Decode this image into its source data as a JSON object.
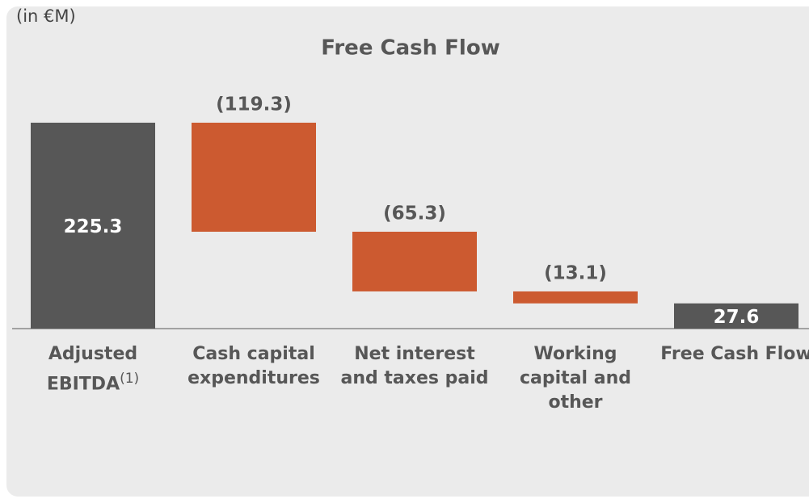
{
  "chart_data": {
    "type": "waterfall",
    "title": "Free Cash Flow",
    "unit_note": "(in €M)",
    "categories": [
      "Adjusted EBITDA",
      "Cash capital expenditures",
      "Net interest and taxes paid",
      "Working capital and other",
      "Free Cash Flow"
    ],
    "category_superscripts": [
      "(1)",
      null,
      null,
      null,
      null
    ],
    "values": [
      225.3,
      -119.3,
      -65.3,
      -13.1,
      27.6
    ],
    "value_labels": [
      "225.3",
      "(119.3)",
      "(65.3)",
      "(13.1)",
      "27.6"
    ],
    "totals": [
      true,
      false,
      false,
      false,
      true
    ],
    "total_color": "#575757",
    "decrease_color": "#cc5a30",
    "ylim": [
      0,
      250
    ]
  }
}
